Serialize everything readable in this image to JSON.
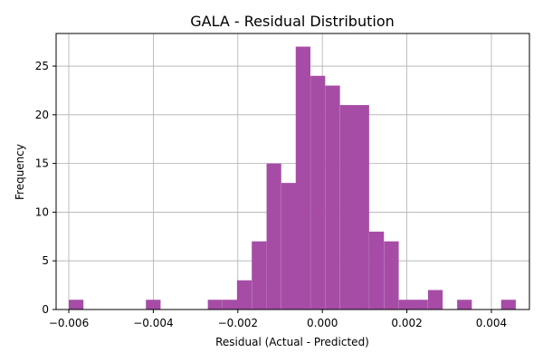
{
  "chart_data": {
    "type": "bar",
    "title": "GALA - Residual Distribution",
    "xlabel": "Residual (Actual - Predicted)",
    "ylabel": "Frequency",
    "xlim": [
      -0.0063,
      0.0049
    ],
    "ylim": [
      0,
      28.35
    ],
    "grid": true,
    "bar_color": "#a64ca6",
    "grid_color": "#b0b0b0",
    "bin_width": 0.000347,
    "bins": [
      {
        "x0": -0.006,
        "count": 1
      },
      {
        "x0": -0.004175,
        "count": 1
      },
      {
        "x0": -0.00271,
        "count": 1
      },
      {
        "x0": -0.00236,
        "count": 1
      },
      {
        "x0": -0.00202,
        "count": 3
      },
      {
        "x0": -0.00167,
        "count": 7
      },
      {
        "x0": -0.00132,
        "count": 15
      },
      {
        "x0": -0.00097,
        "count": 13
      },
      {
        "x0": -0.00063,
        "count": 27
      },
      {
        "x0": -0.00028,
        "count": 24
      },
      {
        "x0": 7e-05,
        "count": 23
      },
      {
        "x0": 0.00042,
        "count": 21
      },
      {
        "x0": 0.00076,
        "count": 21
      },
      {
        "x0": 0.00111,
        "count": 8
      },
      {
        "x0": 0.00146,
        "count": 7
      },
      {
        "x0": 0.00181,
        "count": 1
      },
      {
        "x0": 0.00215,
        "count": 1
      },
      {
        "x0": 0.0025,
        "count": 2
      },
      {
        "x0": 0.00319,
        "count": 1
      },
      {
        "x0": 0.00423,
        "count": 1
      }
    ],
    "xticks": [
      {
        "value": -0.006,
        "label": "−0.006"
      },
      {
        "value": -0.004,
        "label": "−0.004"
      },
      {
        "value": -0.002,
        "label": "−0.002"
      },
      {
        "value": 0.0,
        "label": "0.000"
      },
      {
        "value": 0.002,
        "label": "0.002"
      },
      {
        "value": 0.004,
        "label": "0.004"
      }
    ],
    "yticks": [
      {
        "value": 0,
        "label": "0"
      },
      {
        "value": 5,
        "label": "5"
      },
      {
        "value": 10,
        "label": "10"
      },
      {
        "value": 15,
        "label": "15"
      },
      {
        "value": 20,
        "label": "20"
      },
      {
        "value": 25,
        "label": "25"
      }
    ]
  }
}
